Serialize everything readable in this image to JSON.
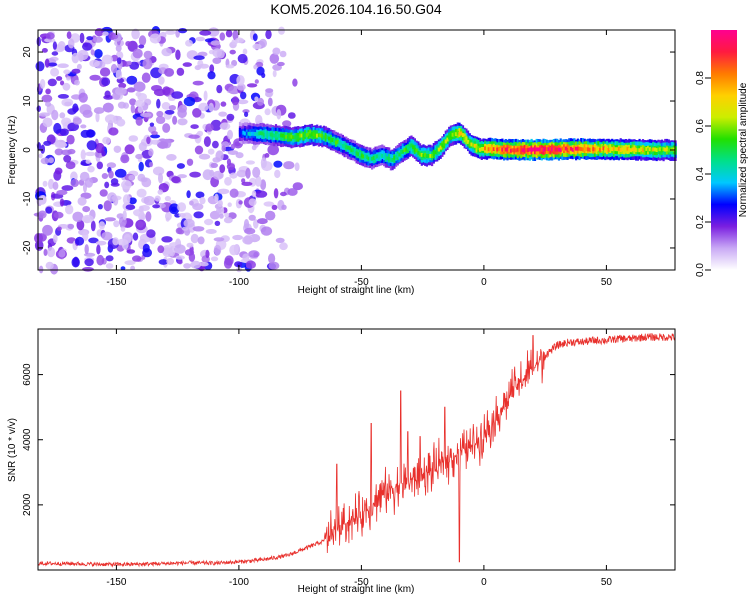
{
  "title": "KOM5.2026.104.16.50.G04",
  "chart_data": [
    {
      "type": "heatmap",
      "name": "spectrogram",
      "xlabel": "Height of straight line (km)",
      "ylabel": "Frequency (Hz)",
      "xlim": [
        -182,
        78
      ],
      "ylim": [
        -24.5,
        24.5
      ],
      "xticks": [
        -150,
        -100,
        -50,
        0,
        50
      ],
      "yticks": [
        -20,
        -10,
        0,
        10,
        20
      ],
      "noise_region": {
        "x_range": [
          -182,
          -78
        ],
        "description_values": "scattered low amplitude 0.1-0.3"
      },
      "ridge": {
        "x": [
          -100,
          -92,
          -85,
          -78,
          -72,
          -66,
          -60,
          -55,
          -50,
          -46,
          -42,
          -38,
          -34,
          -30,
          -26,
          -22,
          -18,
          -14,
          -10,
          -6,
          -2,
          2,
          10,
          20,
          30,
          40,
          50,
          60,
          70,
          78
        ],
        "frequency_hz": [
          3.5,
          3.3,
          3.0,
          2.5,
          3.2,
          2.8,
          1.5,
          0.2,
          -1.2,
          -1.8,
          -1.0,
          -2.0,
          -0.5,
          0.8,
          -1.0,
          -1.2,
          0.5,
          3.0,
          3.5,
          1.2,
          0.2,
          0.3,
          0.0,
          0.0,
          0.1,
          0.2,
          0.2,
          0.1,
          0.0,
          0.0
        ],
        "amplitude": [
          0.3,
          0.45,
          0.5,
          0.55,
          0.6,
          0.55,
          0.5,
          0.45,
          0.5,
          0.45,
          0.45,
          0.5,
          0.5,
          0.55,
          0.6,
          0.55,
          0.6,
          0.6,
          0.7,
          0.6,
          0.7,
          0.8,
          0.9,
          1.0,
          0.95,
          0.85,
          0.75,
          0.7,
          0.65,
          0.6
        ]
      }
    },
    {
      "type": "colorbar",
      "name": "amplitude-colorbar",
      "label": "Normalized spectral amplitude",
      "ticks": [
        0.0,
        0.2,
        0.4,
        0.6,
        0.8
      ],
      "range": [
        0,
        1
      ],
      "colors": [
        "#ffffff",
        "#c9a9f5",
        "#7a1fe0",
        "#0000ff",
        "#00c8ff",
        "#00e08a",
        "#22e000",
        "#ccee00",
        "#ffd000",
        "#ff7a00",
        "#ff1a40",
        "#ff0090"
      ]
    },
    {
      "type": "line",
      "name": "snr",
      "xlabel": "Height of straight line (km)",
      "ylabel": "SNR (10 * v/v)",
      "xlim": [
        -182,
        78
      ],
      "ylim": [
        0,
        7400
      ],
      "xticks": [
        -150,
        -100,
        -50,
        0,
        50
      ],
      "yticks": [
        2000,
        4000,
        6000
      ],
      "color": "#e8302c",
      "series": [
        {
          "name": "SNR",
          "x": [
            -182,
            -170,
            -160,
            -150,
            -140,
            -130,
            -120,
            -110,
            -100,
            -95,
            -90,
            -85,
            -80,
            -75,
            -70,
            -65,
            -60,
            -55,
            -50,
            -45,
            -40,
            -35,
            -30,
            -25,
            -20,
            -15,
            -10,
            -5,
            0,
            5,
            10,
            15,
            20,
            25,
            30,
            35,
            40,
            45,
            50,
            55,
            60,
            65,
            70,
            78
          ],
          "y": [
            200,
            200,
            180,
            170,
            180,
            200,
            220,
            210,
            250,
            280,
            320,
            380,
            450,
            600,
            750,
            900,
            1300,
            1500,
            1700,
            2100,
            2400,
            2600,
            2700,
            2900,
            3100,
            3400,
            3600,
            3800,
            4200,
            4700,
            5300,
            5800,
            6200,
            6600,
            6900,
            7000,
            7000,
            7050,
            7050,
            7100,
            7100,
            7150,
            7150,
            7150
          ]
        }
      ],
      "annotated_peaks": [
        {
          "x": -60,
          "y": 3250
        },
        {
          "x": -46,
          "y": 4500
        },
        {
          "x": -34,
          "y": 5500
        },
        {
          "x": -31,
          "y": 4250
        },
        {
          "x": -26,
          "y": 4100
        },
        {
          "x": -16,
          "y": 5000
        },
        {
          "x": -10,
          "y": 250
        },
        {
          "x": 20,
          "y": 7200
        }
      ]
    }
  ]
}
